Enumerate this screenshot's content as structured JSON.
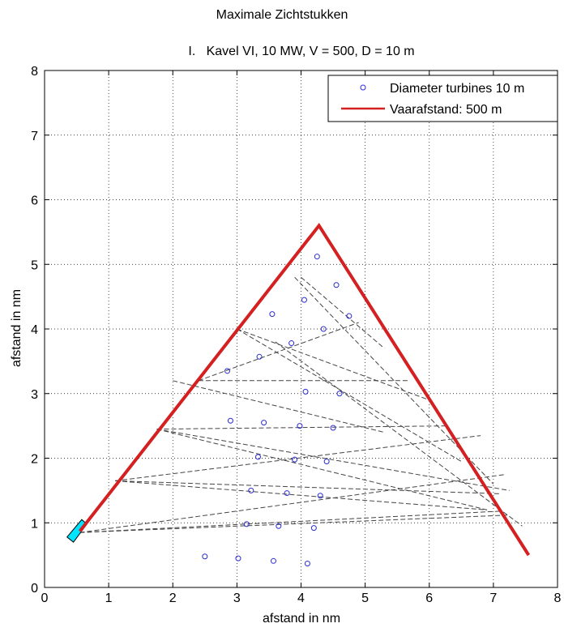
{
  "chart_data": {
    "type": "scatter",
    "title": "Maximale Zichtstukken",
    "subtitle": "I.   Kavel VI, 10 MW, V = 500, D = 10 m",
    "xlabel": "afstand in nm",
    "ylabel": "afstand in nm",
    "xlim": [
      0,
      8
    ],
    "ylim": [
      0,
      8
    ],
    "xticks": [
      0,
      1,
      2,
      3,
      4,
      5,
      6,
      7,
      8
    ],
    "yticks": [
      0,
      1,
      2,
      3,
      4,
      5,
      6,
      7,
      8
    ],
    "grid": true,
    "legend_placement": "top-right",
    "series": [
      {
        "name": "Diameter turbines 10 m",
        "kind": "markers",
        "color": "#2b2bd6",
        "points": [
          [
            4.25,
            5.12
          ],
          [
            4.55,
            4.68
          ],
          [
            3.55,
            4.23
          ],
          [
            4.05,
            4.45
          ],
          [
            4.75,
            4.2
          ],
          [
            4.35,
            4.0
          ],
          [
            3.85,
            3.78
          ],
          [
            3.35,
            3.57
          ],
          [
            2.85,
            3.35
          ],
          [
            4.07,
            3.03
          ],
          [
            4.6,
            3.0
          ],
          [
            2.9,
            2.58
          ],
          [
            3.42,
            2.55
          ],
          [
            3.98,
            2.5
          ],
          [
            4.5,
            2.47
          ],
          [
            3.33,
            2.02
          ],
          [
            3.9,
            1.98
          ],
          [
            4.4,
            1.95
          ],
          [
            3.22,
            1.5
          ],
          [
            3.78,
            1.46
          ],
          [
            4.3,
            1.42
          ],
          [
            3.15,
            0.98
          ],
          [
            3.65,
            0.95
          ],
          [
            4.2,
            0.92
          ],
          [
            2.5,
            0.48
          ],
          [
            3.02,
            0.45
          ],
          [
            3.57,
            0.41
          ],
          [
            4.1,
            0.37
          ]
        ]
      },
      {
        "name": "Vaarafstand: 500 m",
        "kind": "line",
        "color": "#d42020",
        "points": [
          [
            0.55,
            0.87
          ],
          [
            4.28,
            5.6
          ],
          [
            7.55,
            0.5
          ]
        ]
      }
    ],
    "sight_lines": {
      "color": "#444444",
      "style": "dashed",
      "segments": [
        [
          [
            3.0,
            4.0
          ],
          [
            6.0,
            2.9
          ]
        ],
        [
          [
            3.0,
            4.0
          ],
          [
            6.5,
            1.95
          ]
        ],
        [
          [
            4.0,
            4.8
          ],
          [
            5.3,
            3.7
          ]
        ],
        [
          [
            3.9,
            4.8
          ],
          [
            7.0,
            1.6
          ]
        ],
        [
          [
            2.4,
            3.2
          ],
          [
            4.9,
            4.1
          ]
        ],
        [
          [
            2.4,
            3.2
          ],
          [
            5.7,
            3.2
          ]
        ],
        [
          [
            2.0,
            3.2
          ],
          [
            5.3,
            2.4
          ]
        ],
        [
          [
            1.75,
            2.45
          ],
          [
            6.3,
            2.5
          ]
        ],
        [
          [
            1.75,
            2.45
          ],
          [
            7.25,
            1.5
          ]
        ],
        [
          [
            1.75,
            2.45
          ],
          [
            6.9,
            1.2
          ]
        ],
        [
          [
            1.1,
            1.65
          ],
          [
            6.8,
            2.35
          ]
        ],
        [
          [
            1.1,
            1.65
          ],
          [
            6.9,
            1.2
          ]
        ],
        [
          [
            1.1,
            1.65
          ],
          [
            7.1,
            1.45
          ]
        ],
        [
          [
            0.55,
            0.85
          ],
          [
            7.2,
            1.75
          ]
        ],
        [
          [
            0.55,
            0.85
          ],
          [
            7.1,
            1.18
          ]
        ],
        [
          [
            0.55,
            0.85
          ],
          [
            7.25,
            1.12
          ]
        ],
        [
          [
            3.6,
            3.8
          ],
          [
            7.45,
            0.95
          ]
        ]
      ]
    },
    "marker_shape": {
      "color": "#00e5ff",
      "edge_color": "#000000",
      "points": [
        [
          0.35,
          0.78
        ],
        [
          0.58,
          1.05
        ],
        [
          0.66,
          0.98
        ],
        [
          0.45,
          0.7
        ]
      ]
    }
  }
}
